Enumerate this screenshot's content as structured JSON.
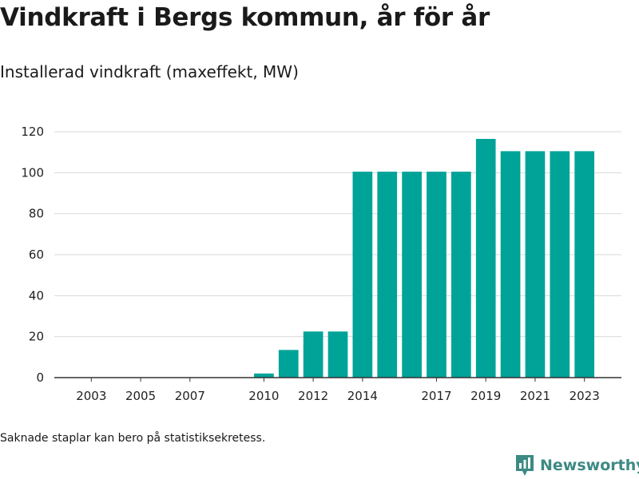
{
  "header": {
    "title": "Vindkraft i Bergs kommun, år för år",
    "subtitle": "Installerad vindkraft (maxeffekt, MW)"
  },
  "chart_data": {
    "type": "bar",
    "x": [
      2010,
      2011,
      2012,
      2013,
      2014,
      2015,
      2016,
      2017,
      2018,
      2019,
      2020,
      2021,
      2022,
      2023
    ],
    "values": [
      2,
      13.5,
      22.5,
      22.5,
      100.5,
      100.5,
      100.5,
      100.5,
      100.5,
      116.5,
      110.5,
      110.5,
      110.5,
      110.5
    ],
    "x_ticks": [
      "2003",
      "2005",
      "2007",
      "2010",
      "2012",
      "2014",
      "2017",
      "2019",
      "2021",
      "2023"
    ],
    "y_ticks": [
      "0",
      "20",
      "40",
      "60",
      "80",
      "100",
      "120"
    ],
    "xlim": [
      2001.5,
      2024.5
    ],
    "ylim": [
      0,
      120
    ],
    "bar_color": "#00a398",
    "grid": "horizontal",
    "title": "Vindkraft i Bergs kommun, år för år",
    "subtitle": "Installerad vindkraft (maxeffekt, MW)",
    "xlabel": "",
    "ylabel": ""
  },
  "footer": {
    "note": "Saknade staplar kan bero på statistiksekretess.",
    "brand": "Newsworthy",
    "brand_icon": "newsworthy-logo-icon",
    "brand_color": "#3c8a83"
  }
}
